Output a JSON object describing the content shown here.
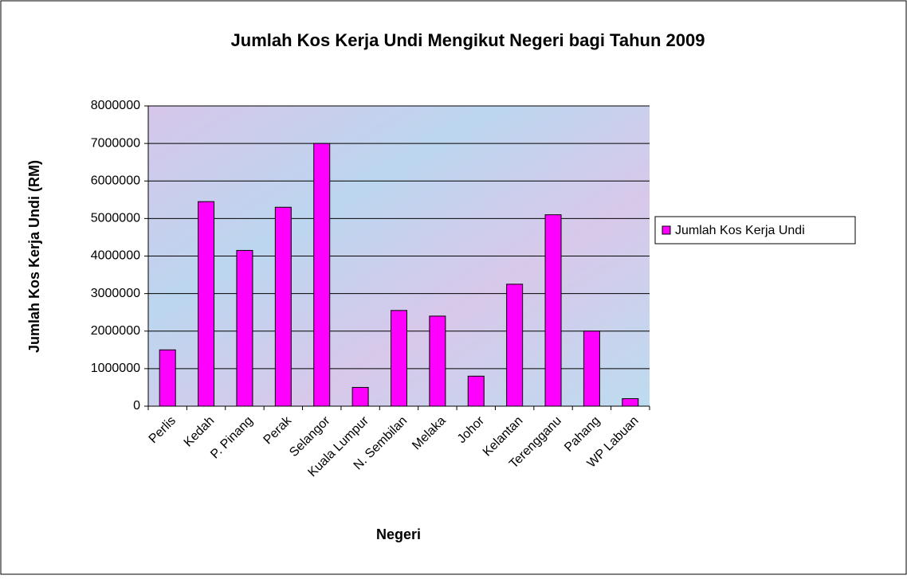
{
  "chart_data": {
    "type": "bar",
    "title": "Jumlah Kos Kerja Undi Mengikut Negeri bagi Tahun 2009",
    "x_label": "Negeri",
    "y_label": "Jumlah Kos Kerja Undi (RM)",
    "categories": [
      "Perlis",
      "Kedah",
      "P. Pinang",
      "Perak",
      "Selangor",
      "Kuala Lumpur",
      "N. Sembilan",
      "Melaka",
      "Johor",
      "Kelantan",
      "Terengganu",
      "Pahang",
      "WP Labuan"
    ],
    "series": [
      {
        "name": "Jumlah Kos Kerja Undi",
        "color": "#ff00ff",
        "values": [
          1500000,
          5450000,
          4150000,
          5300000,
          7000000,
          500000,
          2550000,
          2400000,
          800000,
          3250000,
          5100000,
          2000000,
          200000
        ]
      }
    ],
    "ylim": [
      0,
      8000000
    ],
    "yticks": [
      0,
      1000000,
      2000000,
      3000000,
      4000000,
      5000000,
      6000000,
      7000000,
      8000000
    ],
    "grid": true,
    "legend": "right"
  }
}
